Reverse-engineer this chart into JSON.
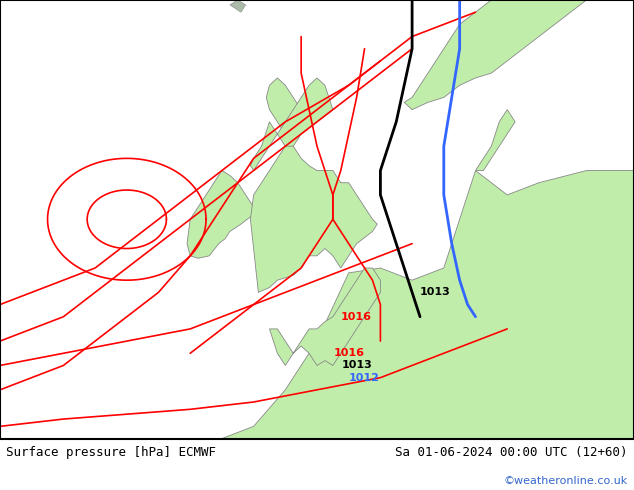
{
  "title_left": "Surface pressure [hPa] ECMWF",
  "title_right": "Sa 01-06-2024 00:00 UTC (12+60)",
  "watermark": "©weatheronline.co.uk",
  "bg_color": "#d8d8d8",
  "land_color": "#c0eeaa",
  "border_color": "#888888",
  "fig_width": 6.34,
  "fig_height": 4.9,
  "dpi": 100,
  "extent": [
    -22,
    18,
    44,
    62
  ],
  "red_color": "#ff0000",
  "black_color": "#000000",
  "blue_color": "#3366ff",
  "label_fontsize": 8
}
